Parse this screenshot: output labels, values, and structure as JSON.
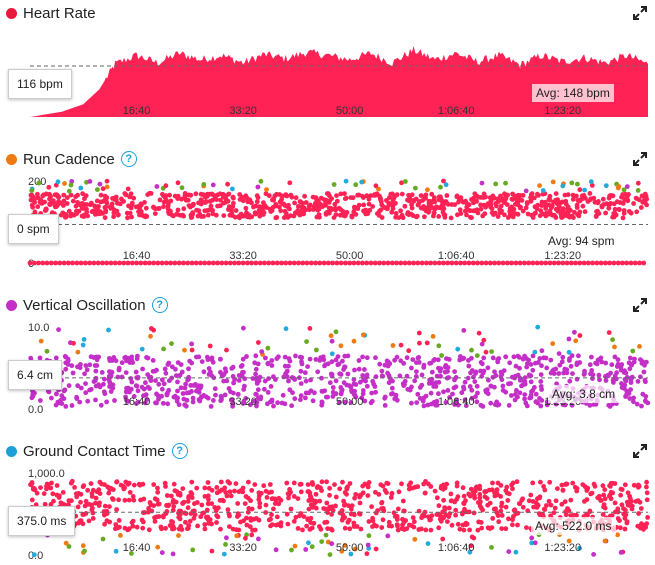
{
  "colors": {
    "heart": "#ff2255",
    "cadence_dot": "#ee7a11",
    "oscillation_dot": "#c42fc7",
    "gct_dot": "#1ca0d8",
    "help": "#1ca0d8",
    "point_colors": [
      "#ff2255",
      "#ee7a11",
      "#22aadd",
      "#66aa22",
      "#c42fc7"
    ]
  },
  "panels": [
    {
      "id": "heart-rate",
      "title": "Heart Rate",
      "icon": "expand-icon",
      "current_value": "116 bpm",
      "average_label": "Avg: 148 bpm",
      "has_help": false
    },
    {
      "id": "run-cadence",
      "title": "Run Cadence",
      "icon": "expand-icon",
      "current_value": "0 spm",
      "average_label": "Avg: 94 spm",
      "has_help": true
    },
    {
      "id": "vertical-oscillation",
      "title": "Vertical Oscillation",
      "icon": "expand-icon",
      "current_value": "6.4 cm",
      "average_label": "Avg: 3.8 cm",
      "has_help": true
    },
    {
      "id": "ground-contact-time",
      "title": "Ground Contact Time",
      "icon": "expand-icon",
      "current_value": "375.0 ms",
      "average_label": "Avg: 522.0 ms",
      "has_help": true
    }
  ],
  "chart_data": [
    {
      "type": "area",
      "title": "Heart Rate",
      "x_tick_labels": [
        "16:40",
        "33:20",
        "50:00",
        "1:06:40",
        "1:23:20"
      ],
      "x_ticks_seconds": [
        1000,
        2000,
        3000,
        4000,
        5000
      ],
      "xlim_seconds": [
        0,
        5800
      ],
      "ylim": [
        100,
        180
      ],
      "average": 148,
      "series": [
        {
          "x": [
            0,
            300,
            500,
            650,
            800,
            1000,
            1200,
            1400,
            1600,
            1800,
            2000,
            2200,
            2400,
            2600,
            2800,
            3000,
            3200,
            3400,
            3600,
            3800,
            4000,
            4200,
            4400,
            4600,
            4800,
            5000,
            5200,
            5400,
            5600,
            5800
          ],
          "y": [
            100,
            105,
            112,
            126,
            150,
            158,
            151,
            160,
            154,
            158,
            151,
            159,
            155,
            161,
            158,
            154,
            160,
            151,
            163,
            154,
            160,
            152,
            158,
            149,
            158,
            152,
            156,
            151,
            158,
            150
          ]
        }
      ]
    },
    {
      "type": "scatter",
      "title": "Run Cadence",
      "y_tick_labels": [
        "200",
        "0"
      ],
      "ylim": [
        0,
        200
      ],
      "average": 94,
      "x_tick_labels": [
        "16:40",
        "33:20",
        "50:00",
        "1:06:40",
        "1:23:20"
      ],
      "x_ticks_seconds": [
        1000,
        2000,
        3000,
        4000,
        5000
      ],
      "xlim_seconds": [
        0,
        5800
      ],
      "main_band": [
        110,
        170
      ],
      "baseline_value": 0,
      "outlier_band": [
        175,
        200
      ]
    },
    {
      "type": "scatter",
      "title": "Vertical Oscillation",
      "y_tick_labels": [
        "10.0",
        "0.0"
      ],
      "ylim": [
        0,
        10
      ],
      "average": 3.8,
      "x_tick_labels": [
        "16:40",
        "33:20",
        "50:00",
        "1:06:40",
        "1:23:20"
      ],
      "x_ticks_seconds": [
        1000,
        2000,
        3000,
        4000,
        5000
      ],
      "xlim_seconds": [
        0,
        5800
      ],
      "main_band": [
        0.3,
        6.5
      ],
      "outlier_band": [
        6.5,
        10
      ]
    },
    {
      "type": "scatter",
      "title": "Ground Contact Time",
      "y_tick_labels": [
        "1,000.0",
        "0.0"
      ],
      "ylim": [
        0,
        1000
      ],
      "average": 522,
      "x_tick_labels": [
        "16:40",
        "33:20",
        "50:00",
        "1:06:40",
        "1:23:20"
      ],
      "x_ticks_seconds": [
        1000,
        2000,
        3000,
        4000,
        5000
      ],
      "xlim_seconds": [
        0,
        5800
      ],
      "main_band": [
        300,
        900
      ],
      "outlier_band": [
        0,
        250
      ]
    }
  ]
}
